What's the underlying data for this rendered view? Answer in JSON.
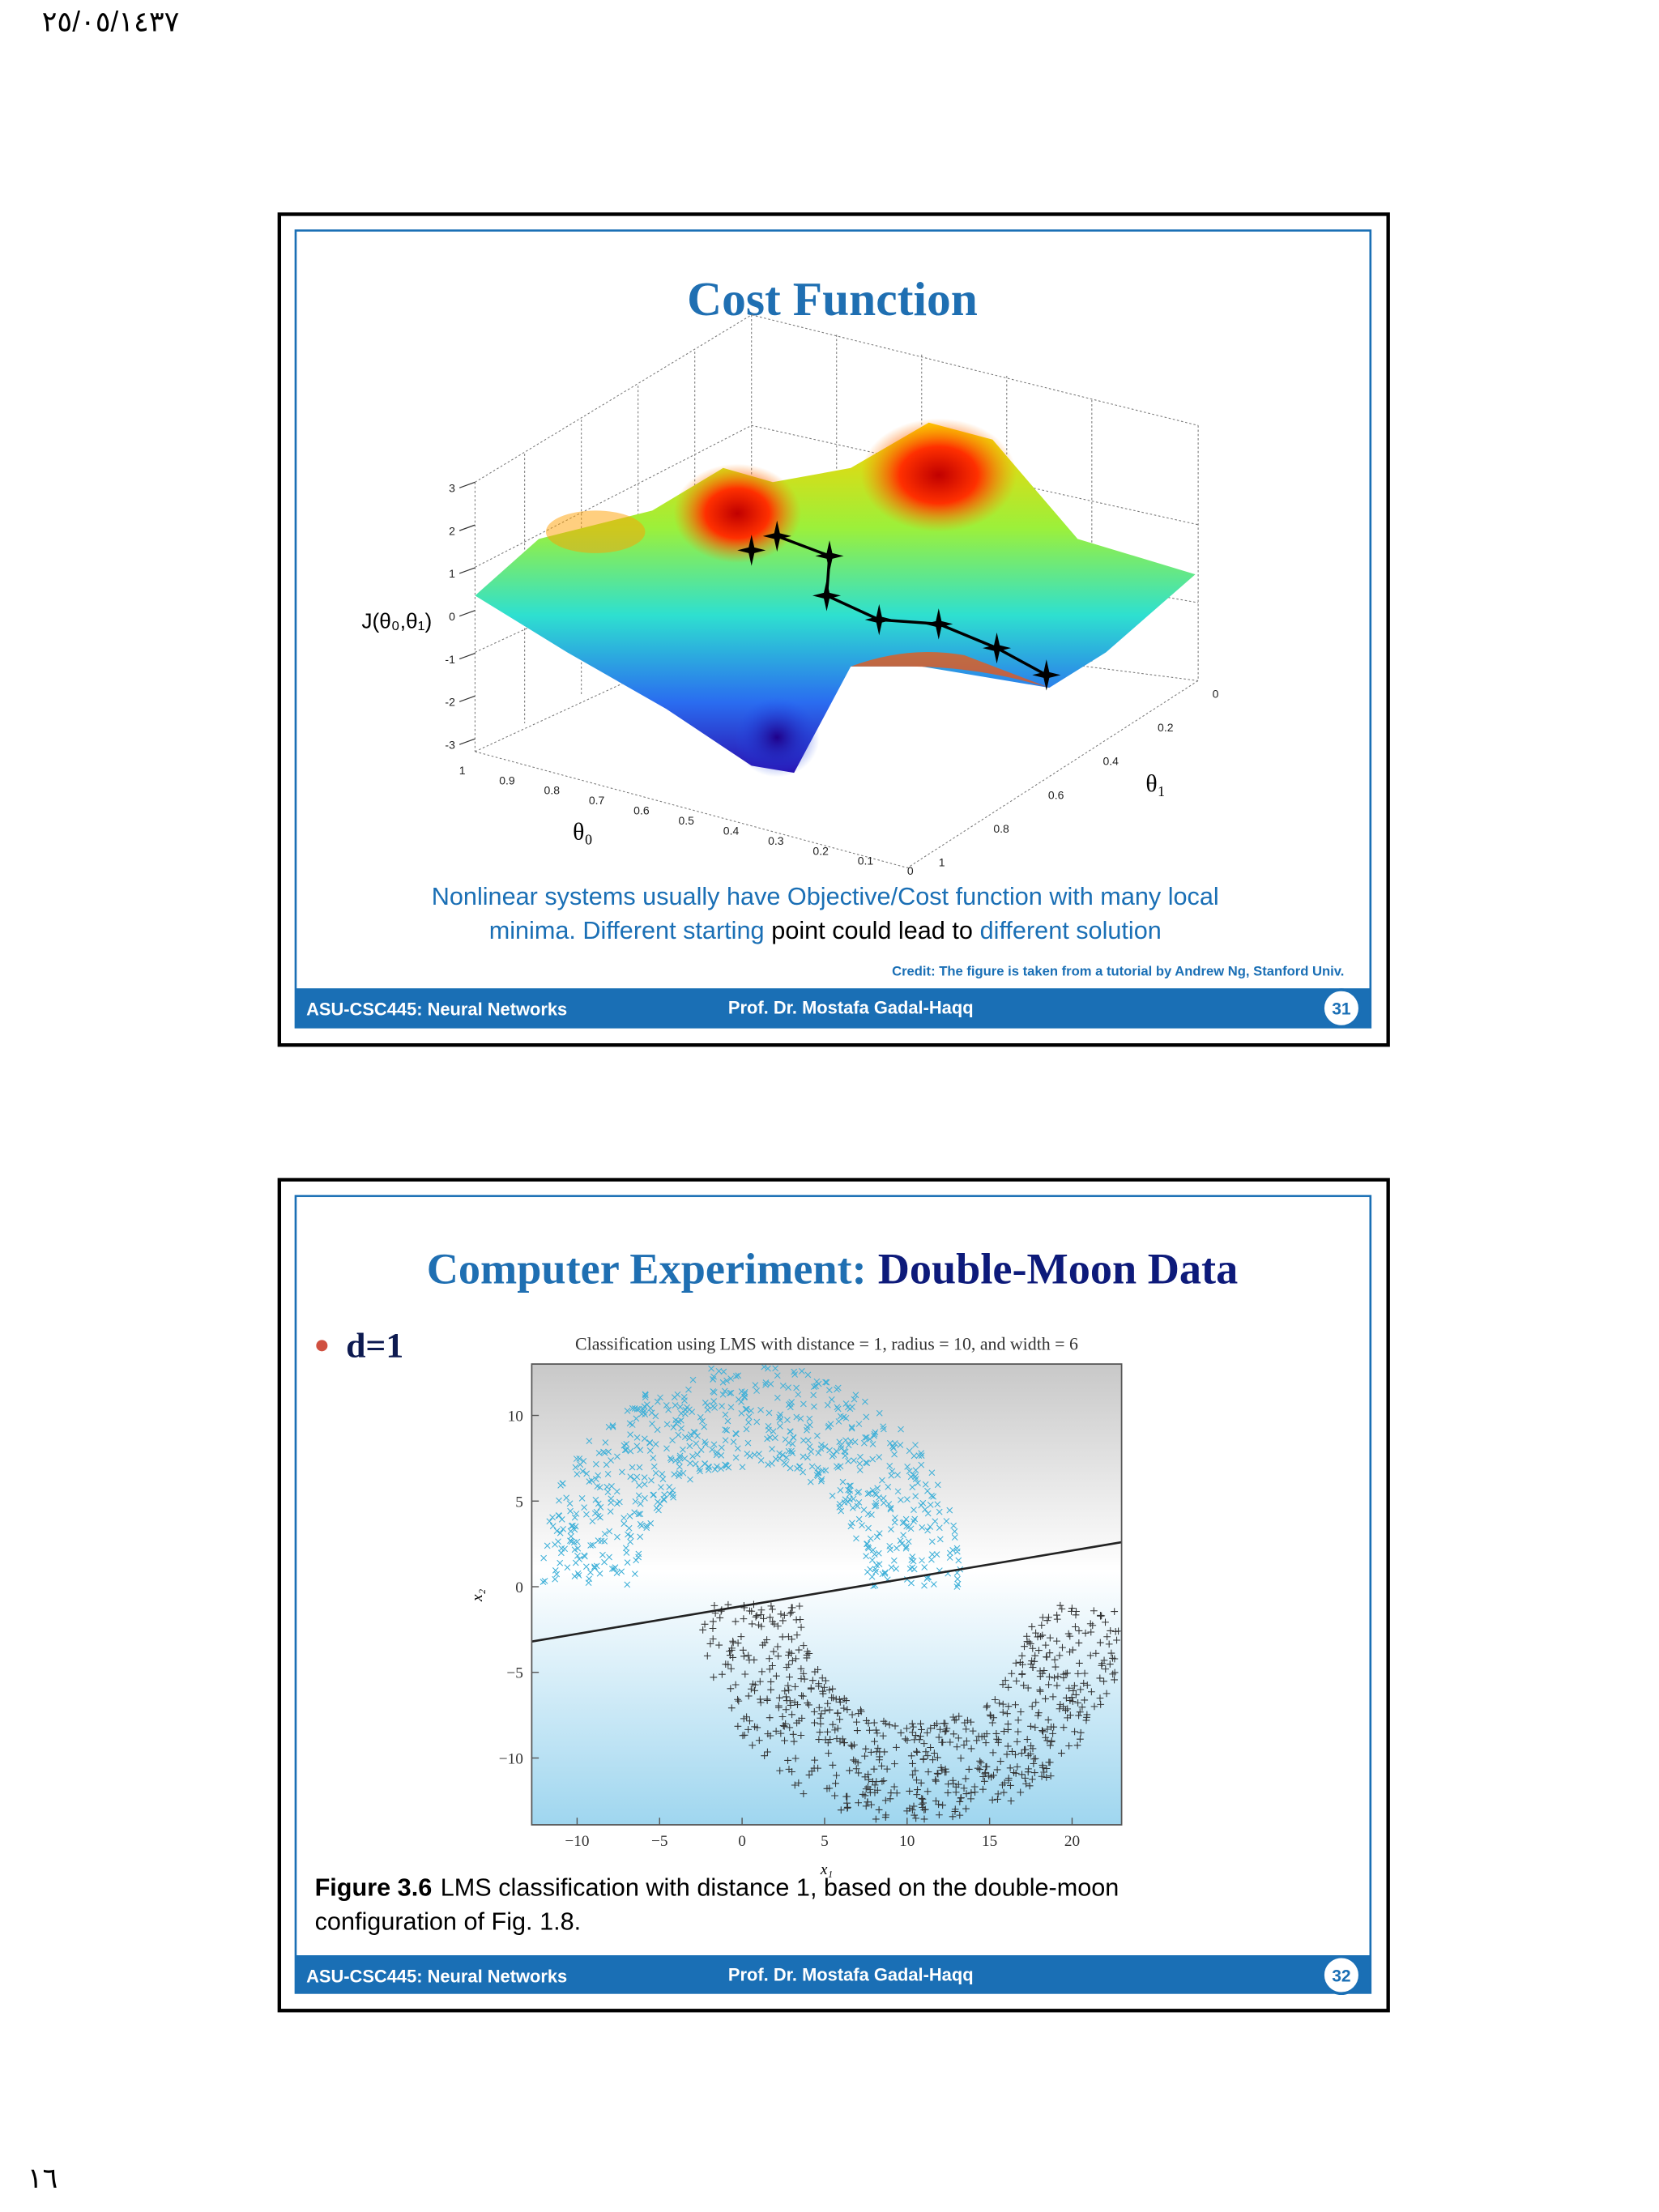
{
  "header": {
    "date": "٢٥/٠٥/١٤٣٧"
  },
  "footer": {
    "page": "١٦"
  },
  "slides": [
    {
      "title": "Cost Function",
      "figure": {
        "z_label": "J(θ₀,θ₁)",
        "theta0_label": "θ₀",
        "theta1_label": "θ₁",
        "z_ticks": [
          "3",
          "2",
          "1",
          "0",
          "-1",
          "-2",
          "-3"
        ],
        "theta0_ticks": [
          "1",
          "0.9",
          "0.8",
          "0.7",
          "0.6",
          "0.5",
          "0.4",
          "0.3",
          "0.2",
          "0.1",
          "0"
        ],
        "theta1_ticks": [
          "0",
          "0.2",
          "0.4",
          "0.6",
          "0.8",
          "1"
        ]
      },
      "caption_lines": [
        [
          {
            "text": "Nonlinear systems usually have Objective/Cost function with many local",
            "style": "blue"
          }
        ],
        [
          {
            "text": "minima. Different starting",
            "style": "blue"
          },
          {
            "text": "point could lead to",
            "style": "black"
          },
          {
            "text": "different solution",
            "style": "blue"
          }
        ]
      ],
      "credit": "Credit: The figure is taken from a tutorial by Andrew Ng, Stanford Univ.",
      "footer": {
        "course": "ASU-CSC445: Neural Networks",
        "author": "Prof. Dr. Mostafa Gadal-Haqq",
        "number": "31"
      }
    },
    {
      "title": {
        "part1": "Computer Experiment:",
        "part2": "Double-Moon Data"
      },
      "bullet": "d=1",
      "chart": {
        "title": "Classification using LMS with distance = 1, radius = 10, and width = 6",
        "xlabel": "x₁",
        "ylabel": "x₂",
        "xlim": [
          -12.75,
          23
        ],
        "ylim": [
          -13.9,
          13
        ],
        "xticks": [
          {
            "value": -10,
            "label": "−10"
          },
          {
            "value": -5,
            "label": "−5"
          },
          0,
          5,
          10,
          15,
          20
        ],
        "yticks": [
          10,
          5,
          0,
          {
            "value": -5,
            "label": "−5"
          },
          {
            "value": -10,
            "label": "−10"
          }
        ],
        "line": {
          "x": [
            -12.75,
            23
          ],
          "y": [
            -3.2,
            2.6
          ]
        }
      },
      "caption": {
        "label": "Figure 3.6",
        "line1": "LMS classification with distance 1, based on the double-moon",
        "line2": "configuration of Fig. 1.8."
      },
      "footer": {
        "course": "ASU-CSC445: Neural Networks",
        "author": "Prof. Dr. Mostafa Gadal-Haqq",
        "number": "32"
      }
    }
  ]
}
